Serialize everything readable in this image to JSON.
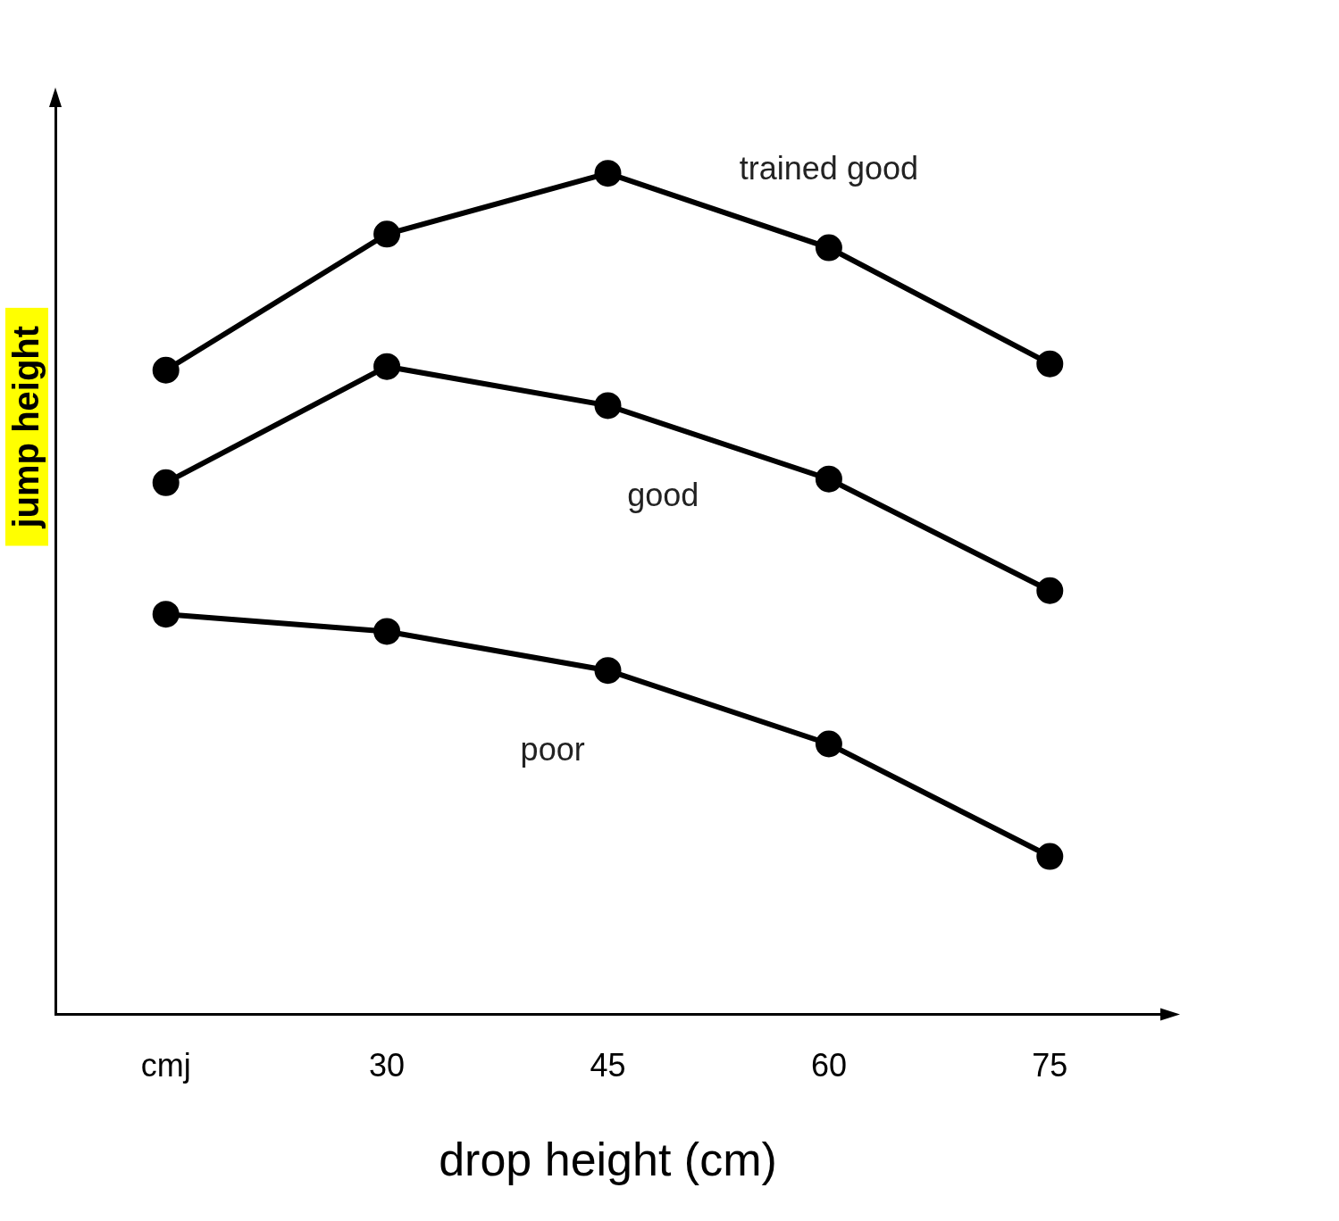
{
  "chart_data": {
    "type": "line",
    "x_label": "drop height (cm)",
    "y_label": "jump height",
    "categories": [
      "cmj",
      "30",
      "45",
      "60",
      "75"
    ],
    "series": [
      {
        "name": "trained good",
        "color": "#000000",
        "values": [
          71,
          86,
          92.7,
          84.5,
          71.7
        ]
      },
      {
        "name": "good",
        "color": "#000000",
        "values": [
          58.6,
          71.4,
          67.1,
          59,
          46.7
        ]
      },
      {
        "name": "poor",
        "color": "#000000",
        "values": [
          44.1,
          42.2,
          37.9,
          29.8,
          17.4
        ]
      }
    ],
    "ylim": [
      0,
      100
    ],
    "grid": false,
    "tick_labels": "x",
    "marker": "circle",
    "line_style": "solid",
    "annotations": [
      {
        "text": "trained good",
        "x": 3,
        "y": 93
      },
      {
        "text": "good",
        "x": 2.25,
        "y": 57
      },
      {
        "text": "poor",
        "x": 1.75,
        "y": 29
      }
    ]
  }
}
